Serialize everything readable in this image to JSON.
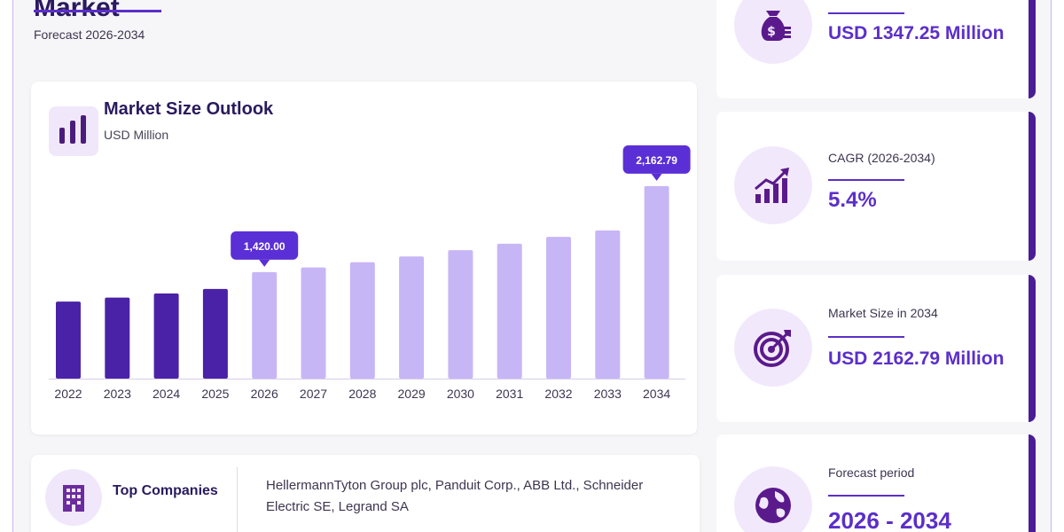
{
  "header": {
    "title": "Market",
    "subtitle": "Forecast 2026-2034"
  },
  "chart_panel": {
    "title": "Market Size Outlook",
    "unit": "USD Million",
    "icon": "bar-chart-icon"
  },
  "chart_data": {
    "type": "bar",
    "title": "Market Size Outlook",
    "ylabel": "USD Million",
    "categories": [
      "2022",
      "2023",
      "2024",
      "2025",
      "2026",
      "2027",
      "2028",
      "2029",
      "2030",
      "2031",
      "2032",
      "2033",
      "2034"
    ],
    "values": [
      1165,
      1200,
      1235,
      1275,
      1420,
      1460,
      1505,
      1555,
      1610,
      1665,
      1725,
      1780,
      2162.79
    ],
    "ylim": [
      500,
      2300
    ],
    "historical_color": "#4a22a8",
    "forecast_color": "#c7b6f6",
    "callouts": [
      {
        "index": 4,
        "label": "1,420.00"
      },
      {
        "index": 12,
        "label": "2,162.79"
      }
    ],
    "callout_color": "#5b2fd6",
    "grid": false
  },
  "companies": {
    "label": "Top Companies",
    "text": "HellermannTyton Group plc, Panduit Corp., ABB Ltd., Schneider Electric SE, Legrand SA",
    "icon": "building-icon"
  },
  "stats": [
    {
      "label": "",
      "value": "USD 1347.25 Million",
      "icon": "money-bag-icon"
    },
    {
      "label": "CAGR (2026-2034)",
      "value": "5.4%",
      "icon": "growth-chart-icon"
    },
    {
      "label": "Market Size in 2034",
      "value": "USD 2162.79 Million",
      "icon": "target-icon"
    },
    {
      "label": "Forecast period",
      "value": "2026 - 2034",
      "icon": "globe-icon"
    }
  ],
  "colors": {
    "accent": "#5b2fc9",
    "dark": "#2a1a5e",
    "icon_bg": "#f2e8fb",
    "icon_fg": "#5a1a8c"
  }
}
